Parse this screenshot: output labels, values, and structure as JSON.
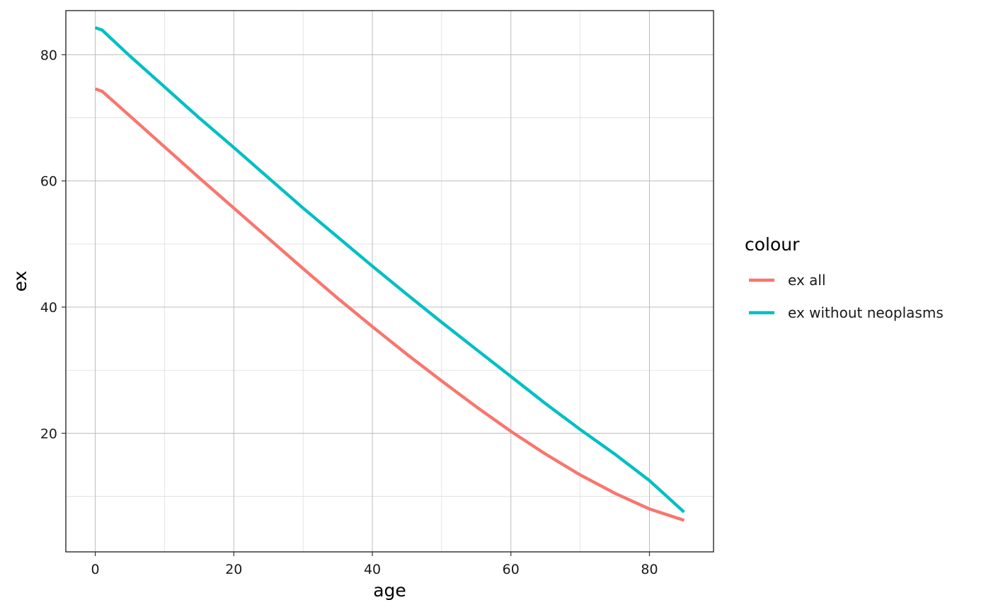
{
  "chart_data": {
    "type": "line",
    "xlabel": "age",
    "ylabel": "ex",
    "xlim": [
      -4.25,
      89.25
    ],
    "ylim": [
      1.2,
      87.0
    ],
    "x_ticks": [
      0,
      20,
      40,
      60,
      80
    ],
    "y_ticks": [
      20,
      40,
      60,
      80
    ],
    "grid": true,
    "legend": {
      "title": "colour",
      "position": "right"
    },
    "series": [
      {
        "name": "ex all",
        "color": "#F8766D",
        "x": [
          0,
          1,
          5,
          10,
          15,
          20,
          25,
          30,
          35,
          40,
          45,
          50,
          55,
          60,
          65,
          70,
          75,
          80,
          85
        ],
        "y": [
          74.6,
          74.2,
          70.3,
          65.4,
          60.5,
          55.7,
          50.9,
          46.1,
          41.4,
          36.9,
          32.5,
          28.3,
          24.2,
          20.3,
          16.7,
          13.4,
          10.5,
          8.0,
          6.2
        ]
      },
      {
        "name": "ex without neoplasms",
        "color": "#00BFC4",
        "x": [
          0,
          1,
          5,
          10,
          15,
          20,
          25,
          30,
          35,
          40,
          45,
          50,
          55,
          60,
          65,
          70,
          75,
          80,
          85
        ],
        "y": [
          84.3,
          83.9,
          79.8,
          74.9,
          70.0,
          65.3,
          60.5,
          55.7,
          51.1,
          46.5,
          42.0,
          37.6,
          33.3,
          29.0,
          24.7,
          20.6,
          16.7,
          12.5,
          7.5
        ]
      }
    ]
  }
}
